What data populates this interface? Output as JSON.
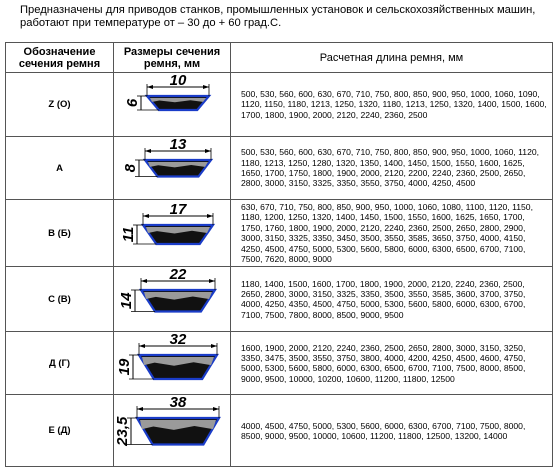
{
  "intro": "Предназначены для приводов станков, промышленных установок и сельскохозяйственных машин, работают при температуре от – 30 до + 60 град.С.",
  "table": {
    "headers": [
      "Обозначение сечения ремня",
      "Размеры сечения ремня, мм",
      "Расчетная длина ремня, мм"
    ],
    "rows": [
      {
        "section": "Z (O)",
        "width": "10",
        "height": "6",
        "lengths": "500, 530, 560, 600, 630, 670, 710, 750, 800, 850, 900, 950, 1000, 1060, 1090, 1120, 1150, 1180, 1213, 1250, 1320, 1180, 1213, 1250, 1320, 1400, 1500, 1600, 1700, 1800, 1900, 2000, 2120, 2240, 2360, 2500"
      },
      {
        "section": "A",
        "width": "13",
        "height": "8",
        "lengths": "500, 530, 560, 600, 630, 670, 710, 750, 800, 850, 900, 950, 1000, 1060, 1120, 1180, 1213, 1250, 1280, 1320, 1350, 1400, 1450, 1500, 1550, 1600, 1625, 1650, 1700, 1750, 1800, 1900, 2000, 2120, 2200, 2240, 2360, 2500, 2650, 2800, 3000, 3150, 3325, 3350, 3550, 3750, 4000, 4250, 4500"
      },
      {
        "section": "В (Б)",
        "width": "17",
        "height": "11",
        "lengths": "630, 670, 710, 750, 800, 850, 900, 950, 1000, 1060, 1080, 1100, 1120, 1150, 1180, 1200, 1250, 1320, 1400, 1450, 1500, 1550, 1600, 1625, 1650, 1700, 1750, 1760, 1800, 1900, 2000, 2120, 2240, 2360, 2500, 2650, 2800, 2900, 3000, 3150, 3325, 3350, 3450, 3500, 3550, 3585, 3650, 3750, 4000, 4150, 4250, 4500, 4750, 5000, 5300, 5600, 5800, 6000, 6300, 6500, 6700, 7100, 7500, 7620, 8000, 9000"
      },
      {
        "section": "С (В)",
        "width": "22",
        "height": "14",
        "lengths": "1180, 1400, 1500, 1600, 1700, 1800, 1900, 2000, 2120, 2240, 2360, 2500, 2650, 2800, 3000, 3150, 3325, 3350, 3500, 3550, 3585, 3600, 3700, 3750, 4000, 4250, 4350, 4500, 4750, 5000, 5300, 5600, 5800, 6000, 6300, 6700, 7100, 7500, 7800, 8000, 8500, 9000, 9500"
      },
      {
        "section": "Д (Г)",
        "width": "32",
        "height": "19",
        "lengths": "1600, 1900, 2000, 2120, 2240, 2360, 2500, 2650, 2800, 3000, 3150, 3250, 3350, 3475, 3500, 3550, 3750, 3800, 4000, 4200, 4250, 4500, 4600, 4750, 5000, 5300, 5600, 5800, 6000, 6300, 6500, 6700, 7100, 7500, 8000, 8500, 9000, 9500, 10000, 10200, 10600, 11200, 11800, 12500"
      },
      {
        "section": "Е (Д)",
        "width": "38",
        "height": "23,5",
        "lengths": "4000, 4500, 4750, 5000, 5300, 5600, 6000, 6300, 6700, 7100, 7500, 8000, 8500, 9000, 9500, 10000, 10600, 11200, 11800, 12500, 13200, 14000"
      }
    ]
  }
}
